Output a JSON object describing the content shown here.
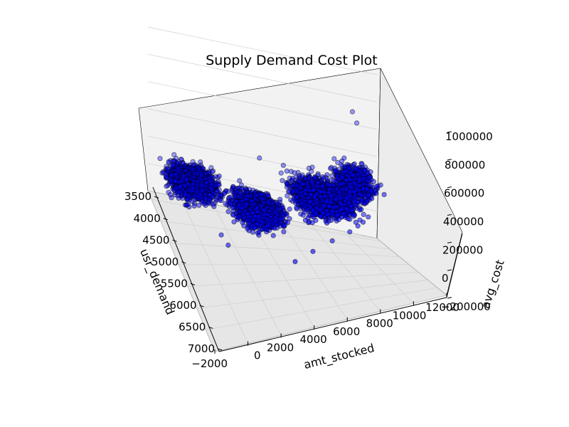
{
  "figure": {
    "background": "#ffffff"
  },
  "chart_data": {
    "type": "scatter",
    "projection": "3d",
    "title": "Supply Demand Cost Plot",
    "xlabel": "usr_demand",
    "ylabel": "amt_stocked",
    "zlabel": "avg_cost",
    "xlim": [
      3300,
      7000
    ],
    "ylim": [
      -2000,
      12000
    ],
    "zlim": [
      -200000,
      1000000
    ],
    "xticks": [
      "3500",
      "4000",
      "4500",
      "5000",
      "5500",
      "6000",
      "6500",
      "7000"
    ],
    "yticks": [
      "−2000",
      "0",
      "2000",
      "4000",
      "6000",
      "8000",
      "10000",
      "12000"
    ],
    "zticks": [
      "−200000",
      "0",
      "200000",
      "400000",
      "600000",
      "800000",
      "1000000"
    ],
    "grid": true,
    "marker_face": "#0000ff",
    "marker_edge": "#000000",
    "pane_color": "#f2f2f2",
    "series": [
      {
        "description_free": true,
        "clusters": [
          {
            "usr_demand": [
              3400,
              4500
            ],
            "amt_stocked": [
              -2000,
              2000
            ],
            "avg_cost": [
              0,
              200000
            ],
            "count": 1400
          },
          {
            "usr_demand": [
              3700,
              5000
            ],
            "amt_stocked": [
              1500,
              5500
            ],
            "avg_cost": [
              -50000,
              150000
            ],
            "count": 1600
          },
          {
            "usr_demand": [
              3500,
              5200
            ],
            "amt_stocked": [
              5000,
              10000
            ],
            "avg_cost": [
              50000,
              300000
            ],
            "count": 1700
          },
          {
            "usr_demand": [
              3700,
              5000
            ],
            "amt_stocked": [
              8000,
              11000
            ],
            "avg_cost": [
              150000,
              450000
            ],
            "count": 700
          }
        ],
        "outliers": [
          {
            "usr_demand": 3560,
            "amt_stocked": 10200,
            "avg_cost": 720000
          },
          {
            "usr_demand": 3620,
            "amt_stocked": 10400,
            "avg_cost": 650000
          },
          {
            "usr_demand": 3850,
            "amt_stocked": 4200,
            "avg_cost": 320000
          },
          {
            "usr_demand": 3900,
            "amt_stocked": 5600,
            "avg_cost": 300000
          },
          {
            "usr_demand": 5700,
            "amt_stocked": 4300,
            "avg_cost": -20000
          },
          {
            "usr_demand": 5500,
            "amt_stocked": 5600,
            "avg_cost": 0
          },
          {
            "usr_demand": 5300,
            "amt_stocked": 7000,
            "avg_cost": 30000
          },
          {
            "usr_demand": 5000,
            "amt_stocked": 8400,
            "avg_cost": 40000
          },
          {
            "usr_demand": 5100,
            "amt_stocked": 900,
            "avg_cost": -30000
          },
          {
            "usr_demand": 4900,
            "amt_stocked": 700,
            "avg_cost": -10000
          }
        ]
      }
    ]
  }
}
